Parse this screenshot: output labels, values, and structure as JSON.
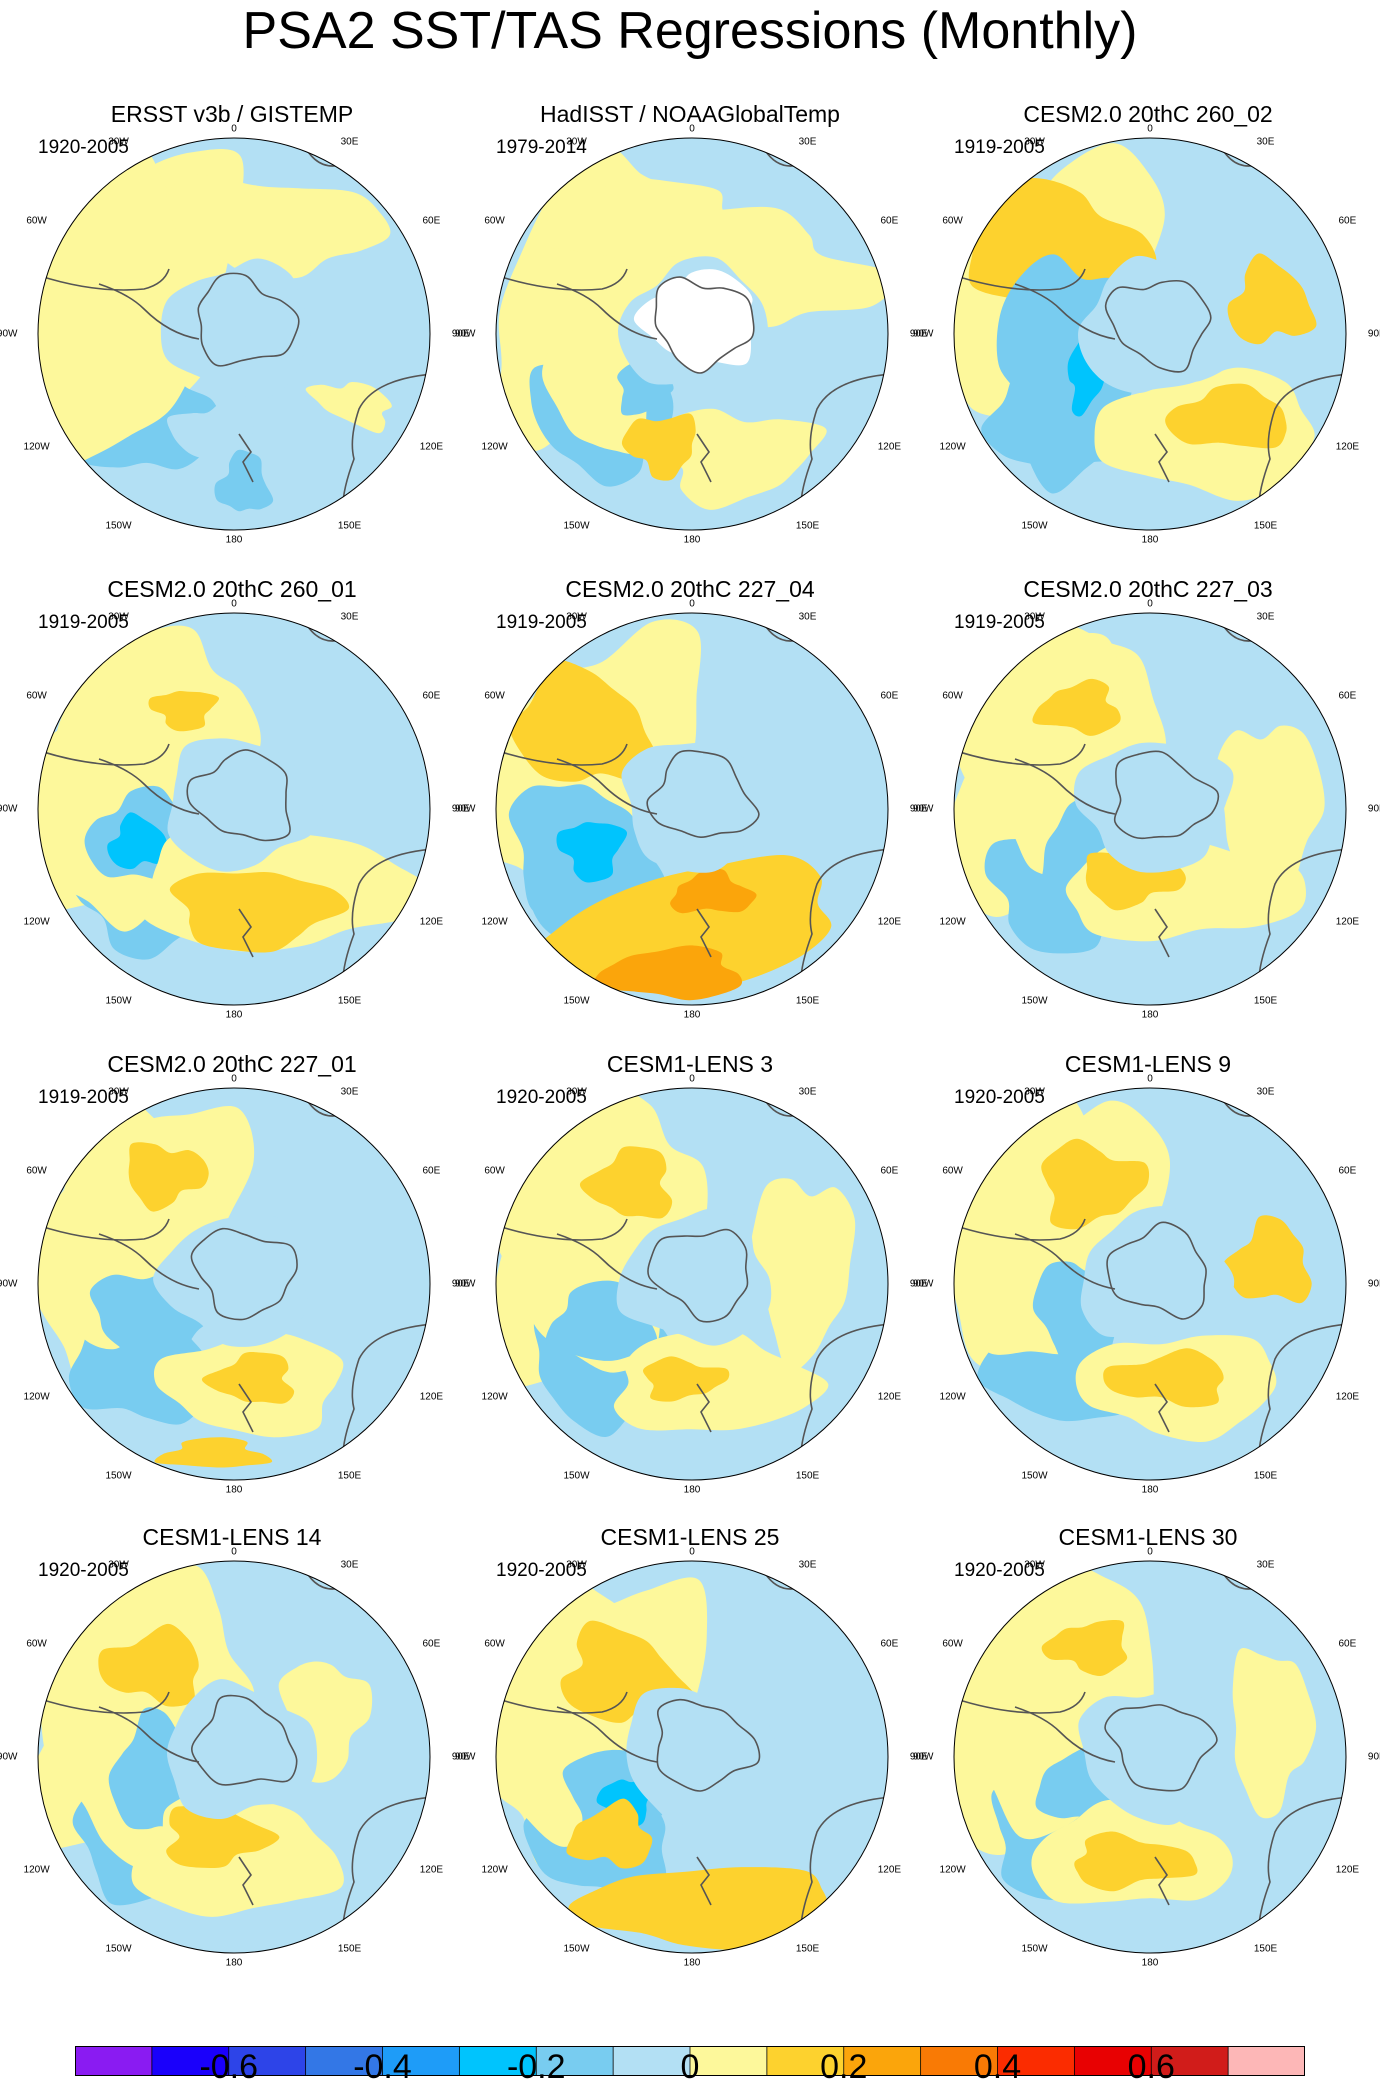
{
  "title": "PSA2 SST/TAS Regressions (Monthly)",
  "longitude_labels": [
    "0",
    "30E",
    "60E",
    "90E",
    "120E",
    "150E",
    "180",
    "150W",
    "120W",
    "90W",
    "60W",
    "30W"
  ],
  "panels": [
    {
      "title": "ERSST v3b / GISTEMP",
      "years": "1920-2005"
    },
    {
      "title": "HadISST / NOAAGlobalTemp",
      "years": "1979-2014"
    },
    {
      "title": "CESM2.0 20thC 260_02",
      "years": "1919-2005"
    },
    {
      "title": "CESM2.0 20thC 260_01",
      "years": "1919-2005"
    },
    {
      "title": "CESM2.0 20thC 227_04",
      "years": "1919-2005"
    },
    {
      "title": "CESM2.0 20thC 227_03",
      "years": "1919-2005"
    },
    {
      "title": "CESM2.0 20thC 227_01",
      "years": "1919-2005"
    },
    {
      "title": "CESM1-LENS 3",
      "years": "1920-2005"
    },
    {
      "title": "CESM1-LENS 9",
      "years": "1920-2005"
    },
    {
      "title": "CESM1-LENS 14",
      "years": "1920-2005"
    },
    {
      "title": "CESM1-LENS 25",
      "years": "1920-2005"
    },
    {
      "title": "CESM1-LENS 30",
      "years": "1920-2005"
    }
  ],
  "colorbar": {
    "colors": [
      "#8a1bf2",
      "#1a00fb",
      "#2d44e8",
      "#3377e6",
      "#1e9cf8",
      "#00c4fd",
      "#78ccf0",
      "#b3e0f4",
      "#fdf89b",
      "#fdd22e",
      "#fba50b",
      "#f97a05",
      "#fb2c00",
      "#e80102",
      "#d11c1a",
      "#fdb7b7"
    ],
    "tick_labels": [
      "-0.6",
      "-0.4",
      "-0.2",
      "0",
      "0.2",
      "0.4",
      "0.6"
    ]
  },
  "palette": {
    "neg_weak": "#b3e0f4",
    "neg_mid": "#78ccf0",
    "neg_strong": "#00c4fd",
    "pos_weak": "#fdf89b",
    "pos_mid": "#fdd22e",
    "pos_strong": "#fba50b",
    "missing": "#ffffff",
    "land_outline": "#555555"
  }
}
